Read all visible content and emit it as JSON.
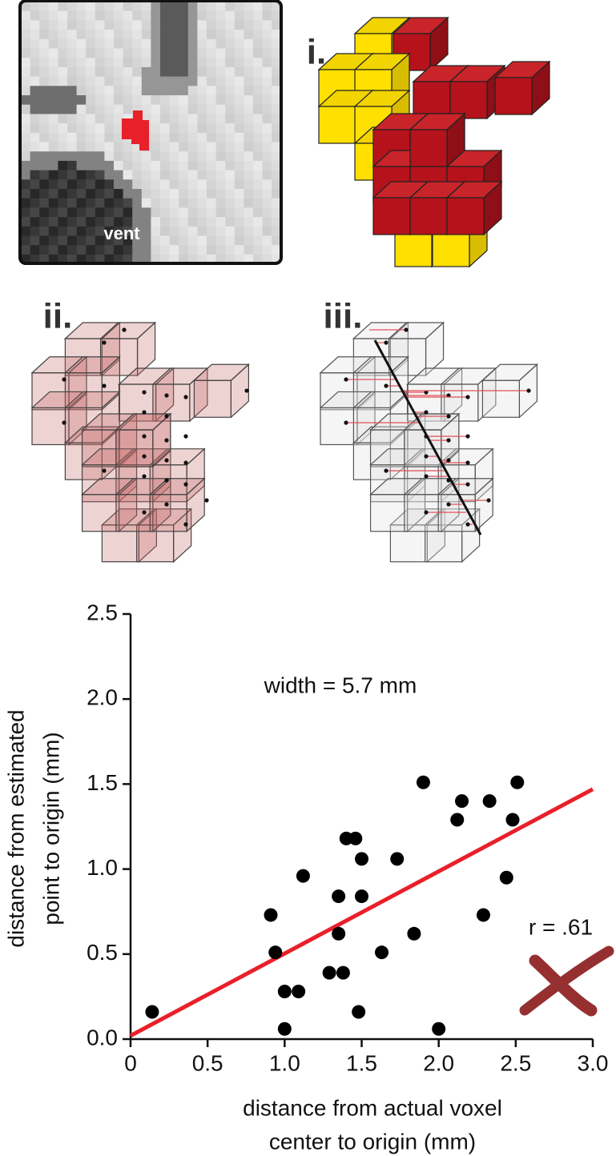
{
  "panels": {
    "mri_label": "vent",
    "labels": [
      "i.",
      "ii.",
      "iii."
    ]
  },
  "chart_data": {
    "type": "scatter",
    "xlabel": [
      "distance from actual voxel",
      "center to origin (mm)"
    ],
    "ylabel": [
      "distance from estimated",
      "point to origin (mm)"
    ],
    "annotations": [
      "width = 5.7 mm",
      "r = .61"
    ],
    "x": [
      0.14,
      0.91,
      0.94,
      1.0,
      1.0,
      1.09,
      1.12,
      1.29,
      1.35,
      1.35,
      1.38,
      1.4,
      1.46,
      1.48,
      1.5,
      1.5,
      1.63,
      1.73,
      1.84,
      1.9,
      2.0,
      2.12,
      2.15,
      2.29,
      2.33,
      2.44,
      2.48,
      2.51
    ],
    "values": [
      0.16,
      0.73,
      0.51,
      0.28,
      0.06,
      0.28,
      0.96,
      0.39,
      0.84,
      0.62,
      0.39,
      1.18,
      1.18,
      0.16,
      1.06,
      0.84,
      0.51,
      1.06,
      0.62,
      1.51,
      0.06,
      1.29,
      1.4,
      0.73,
      1.4,
      0.95,
      1.29,
      1.51
    ],
    "color": "#000000",
    "fit": {
      "x": [
        0,
        3.0
      ],
      "y": [
        0.02,
        1.47
      ],
      "color": "#e8202a"
    },
    "xlim": [
      0,
      3.0
    ],
    "xticks": [
      0,
      0.5,
      {
        "value": 1,
        "label": "1.0"
      },
      1.5,
      {
        "value": 2,
        "label": "2.0"
      },
      2.5,
      {
        "value": 3,
        "label": "3.0"
      }
    ],
    "ylim": [
      0,
      2.5
    ],
    "yticks": [
      {
        "value": 0,
        "label": "0.0"
      },
      0.5,
      {
        "value": 1,
        "label": "1.0"
      },
      1.5,
      {
        "value": 2,
        "label": "2.0"
      },
      2.5
    ]
  }
}
